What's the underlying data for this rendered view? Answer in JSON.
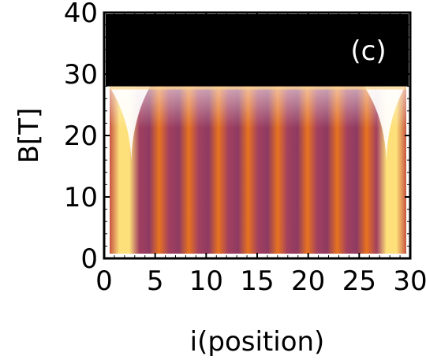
{
  "chart_data": {
    "type": "heatmap",
    "panel_label": "(c)",
    "xlabel": "i(position)",
    "ylabel": "B[T]",
    "xlim": [
      0,
      30
    ],
    "ylim": [
      0,
      40
    ],
    "x_ticks": [
      0,
      5,
      10,
      15,
      20,
      25,
      30
    ],
    "y_ticks": [
      0,
      10,
      20,
      30,
      40
    ],
    "x_tick_labels": [
      "0",
      "5",
      "10",
      "15",
      "20",
      "25",
      "30"
    ],
    "y_tick_labels": [
      "0",
      "10",
      "20",
      "30",
      "40"
    ],
    "cutoff_field": 28,
    "above_cutoff_color": "#000000",
    "colormap": [
      "#000000",
      "#2a0a2e",
      "#6e2a5c",
      "#a2405f",
      "#c8543f",
      "#e8731f",
      "#f7a020",
      "#fde07a",
      "#ffffff"
    ],
    "bright_columns": [
      1,
      2,
      5,
      8,
      11,
      14,
      17,
      20,
      23,
      26,
      28,
      29
    ],
    "grid": false
  }
}
